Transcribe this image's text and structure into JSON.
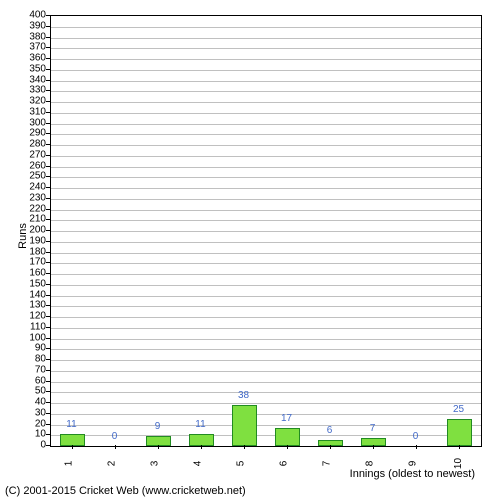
{
  "chart": {
    "type": "bar",
    "categories": [
      "1",
      "2",
      "3",
      "4",
      "5",
      "6",
      "7",
      "8",
      "9",
      "10"
    ],
    "values": [
      11,
      0,
      9,
      11,
      38,
      17,
      6,
      7,
      0,
      25
    ],
    "bar_fill": "#7fe040",
    "bar_border": "#228b22",
    "label_color": "#4169c8",
    "ylabel": "Runs",
    "xlabel": "Innings (oldest to newest)",
    "ylim": [
      0,
      400
    ],
    "ytick_step": 10,
    "grid_color": "#c0c0c0",
    "background_color": "#ffffff",
    "bar_width_ratio": 0.6,
    "label_fontsize": 10,
    "axis_fontsize": 11
  },
  "copyright": "(C) 2001-2015 Cricket Web (www.cricketweb.net)"
}
